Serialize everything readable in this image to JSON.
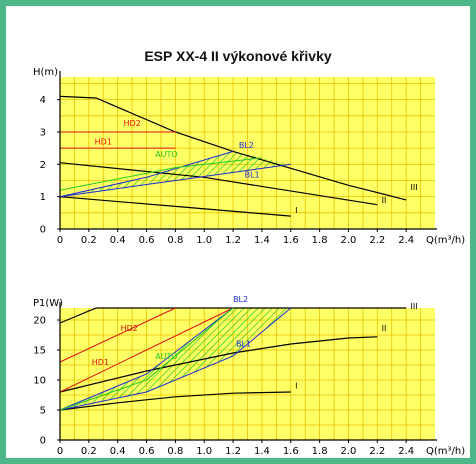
{
  "title": "ESP XX-4 II výkonové křivky",
  "colors": {
    "frame": "#4fb88a",
    "plot_bg": "#ffff66",
    "grid": "#e8c300",
    "red": "#e01010",
    "blue": "#1a2ad8",
    "green": "#22cc22",
    "black": "#000000"
  },
  "chart_data": [
    {
      "type": "line",
      "title": "",
      "ylabel": "H(m)",
      "xlabel": "Q(m³/h)",
      "xlim": [
        0,
        2.6
      ],
      "ylim": [
        0,
        4.7
      ],
      "xticks": [
        "0",
        "0.2",
        "0.4",
        "0.6",
        "0.8",
        "1.0",
        "1.2",
        "1.4",
        "1.6",
        "1.8",
        "2.0",
        "2.2",
        "2.4"
      ],
      "yticks": [
        "0",
        "1",
        "2",
        "3",
        "4"
      ],
      "grid": true,
      "series": [
        {
          "name": "III",
          "color": "black",
          "x": [
            0,
            0.25,
            0.8,
            1.2,
            2.0,
            2.4
          ],
          "y": [
            4.1,
            4.05,
            3.0,
            2.4,
            1.35,
            0.9
          ]
        },
        {
          "name": "II",
          "color": "black",
          "x": [
            0,
            1.0,
            2.2
          ],
          "y": [
            2.05,
            1.6,
            0.75
          ]
        },
        {
          "name": "I",
          "color": "black",
          "x": [
            0,
            0.8,
            1.6
          ],
          "y": [
            1.0,
            0.7,
            0.4
          ]
        },
        {
          "name": "HD2",
          "color": "red",
          "x": [
            0,
            0.8
          ],
          "y": [
            3.0,
            3.0
          ]
        },
        {
          "name": "HD1",
          "color": "red",
          "x": [
            0,
            0.8
          ],
          "y": [
            2.5,
            2.5
          ]
        },
        {
          "name": "BL2",
          "color": "blue",
          "x": [
            0,
            0.6,
            1.2
          ],
          "y": [
            1.0,
            1.6,
            2.4
          ]
        },
        {
          "name": "BL1",
          "color": "blue",
          "x": [
            0,
            0.8,
            1.6
          ],
          "y": [
            1.0,
            1.5,
            2.0
          ]
        },
        {
          "name": "AUTO",
          "color": "green",
          "x": [
            0,
            0.8,
            1.4
          ],
          "y": [
            1.2,
            1.9,
            2.2
          ]
        }
      ],
      "annotations": [
        {
          "text": "HD2",
          "x": 0.44,
          "y": 3.18,
          "color": "red"
        },
        {
          "text": "HD1",
          "x": 0.24,
          "y": 2.62,
          "color": "red"
        },
        {
          "text": "AUTO",
          "x": 0.66,
          "y": 2.22,
          "color": "green"
        },
        {
          "text": "BL2",
          "x": 1.24,
          "y": 2.5,
          "color": "blue"
        },
        {
          "text": "BL1",
          "x": 1.28,
          "y": 1.6,
          "color": "blue"
        },
        {
          "text": "III",
          "x": 2.43,
          "y": 1.2,
          "color": "black"
        },
        {
          "text": "II",
          "x": 2.23,
          "y": 0.8,
          "color": "black"
        },
        {
          "text": "I",
          "x": 1.63,
          "y": 0.5,
          "color": "black"
        }
      ]
    },
    {
      "type": "line",
      "title": "",
      "ylabel": "P1(W)",
      "xlabel": "Q(m³/h)",
      "xlim": [
        0,
        2.6
      ],
      "ylim": [
        0,
        22
      ],
      "xticks": [
        "0",
        "0.2",
        "0.4",
        "0.6",
        "0.8",
        "1.0",
        "1.2",
        "1.4",
        "1.6",
        "1.8",
        "2.0",
        "2.2",
        "2.4"
      ],
      "yticks": [
        "0",
        "5",
        "10",
        "15",
        "20"
      ],
      "grid": true,
      "series": [
        {
          "name": "III",
          "color": "black",
          "x": [
            0,
            0.25,
            2.4
          ],
          "y": [
            19.5,
            22,
            22
          ]
        },
        {
          "name": "II",
          "color": "black",
          "x": [
            0,
            0.6,
            1.2,
            1.6,
            2.0,
            2.2
          ],
          "y": [
            8.0,
            11.5,
            14.5,
            16.0,
            17.0,
            17.2
          ]
        },
        {
          "name": "I",
          "color": "black",
          "x": [
            0,
            0.4,
            0.8,
            1.2,
            1.6
          ],
          "y": [
            5.0,
            6.2,
            7.2,
            7.8,
            8.0
          ]
        },
        {
          "name": "HD2",
          "color": "red",
          "x": [
            0,
            0.8
          ],
          "y": [
            13.0,
            22.0
          ]
        },
        {
          "name": "HD1",
          "color": "red",
          "x": [
            0,
            1.2
          ],
          "y": [
            8.0,
            22.0
          ]
        },
        {
          "name": "BL2",
          "color": "blue",
          "x": [
            0,
            0.6,
            1.2
          ],
          "y": [
            5.0,
            11.0,
            22.0
          ]
        },
        {
          "name": "BL1",
          "color": "blue",
          "x": [
            0,
            0.6,
            1.2,
            1.6
          ],
          "y": [
            5.0,
            8.0,
            14.0,
            22.0
          ]
        },
        {
          "name": "AUTO",
          "color": "green",
          "x": [
            0,
            0.6,
            1.2
          ],
          "y": [
            5.0,
            10.0,
            22.0
          ]
        }
      ],
      "annotations": [
        {
          "text": "HD2",
          "x": 0.42,
          "y": 18.2,
          "color": "red"
        },
        {
          "text": "HD1",
          "x": 0.22,
          "y": 12.5,
          "color": "red"
        },
        {
          "text": "AUTO",
          "x": 0.66,
          "y": 13.5,
          "color": "green"
        },
        {
          "text": "BL2",
          "x": 1.2,
          "y": 23.0,
          "color": "blue"
        },
        {
          "text": "BL1",
          "x": 1.22,
          "y": 15.6,
          "color": "blue"
        },
        {
          "text": "III",
          "x": 2.43,
          "y": 21.8,
          "color": "black"
        },
        {
          "text": "II",
          "x": 2.23,
          "y": 18.2,
          "color": "black"
        },
        {
          "text": "I",
          "x": 1.63,
          "y": 8.6,
          "color": "black"
        }
      ]
    }
  ]
}
